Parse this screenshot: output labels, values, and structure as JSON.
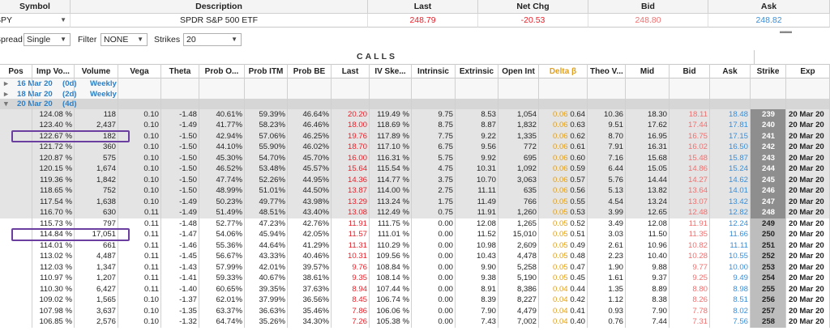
{
  "quote": {
    "headers": [
      "Symbol",
      "Description",
      "Last",
      "Net Chg",
      "Bid",
      "Ask"
    ],
    "symbol": "SPY",
    "description": "SPDR S&P 500 ETF",
    "last": "248.79",
    "net_chg": "-20.53",
    "bid": "248.80",
    "ask": "248.82"
  },
  "filters": {
    "spread_label": "Spread",
    "spread_value": "Single",
    "filter_label": "Filter",
    "filter_value": "NONE",
    "strikes_label": "Strikes",
    "strikes_value": "20"
  },
  "banner": "CALLS",
  "columns": [
    "Pos",
    "Imp Vo...",
    "Volume",
    "Vega",
    "Theta",
    "Prob O...",
    "Prob ITM",
    "Prob BE",
    "Last",
    "IV Ske...",
    "Intrinsic",
    "Extrinsic",
    "Open Int",
    "Delta β",
    "Theo V...",
    "Mid",
    "Bid",
    "Ask",
    "Strike",
    "Exp"
  ],
  "expirations": [
    {
      "date": "16 Mar 20",
      "days": "(0d)",
      "type": "Weekly",
      "expanded": false
    },
    {
      "date": "18 Mar 20",
      "days": "(2d)",
      "type": "Weekly",
      "expanded": false
    },
    {
      "date": "20 Mar 20",
      "days": "(4d)",
      "type": "",
      "expanded": true
    }
  ],
  "rows": [
    {
      "iv": "124.08 %",
      "vol": "118",
      "vega": "0.10",
      "theta": "-1.48",
      "po": "40.61%",
      "pitm": "59.39%",
      "pbe": "46.64%",
      "last": "20.20",
      "ivs": "119.49 %",
      "intr": "9.75",
      "extr": "8.53",
      "oi": "1,054",
      "da": "0.06",
      "db": "0.64",
      "theo": "10.36",
      "mid": "18.30",
      "bid": "18.11",
      "ask": "18.48",
      "strike": "239",
      "exp": "20 Mar 20",
      "itm": true
    },
    {
      "iv": "123.40 %",
      "vol": "2,437",
      "vega": "0.10",
      "theta": "-1.49",
      "po": "41.77%",
      "pitm": "58.23%",
      "pbe": "46.46%",
      "last": "18.00",
      "ivs": "118.69 %",
      "intr": "8.75",
      "extr": "8.87",
      "oi": "1,832",
      "da": "0.06",
      "db": "0.63",
      "theo": "9.51",
      "mid": "17.62",
      "bid": "17.44",
      "ask": "17.81",
      "strike": "240",
      "exp": "20 Mar 20",
      "itm": true
    },
    {
      "iv": "122.67 %",
      "vol": "182",
      "vega": "0.10",
      "theta": "-1.50",
      "po": "42.94%",
      "pitm": "57.06%",
      "pbe": "46.25%",
      "last": "19.76",
      "ivs": "117.89 %",
      "intr": "7.75",
      "extr": "9.22",
      "oi": "1,335",
      "da": "0.06",
      "db": "0.62",
      "theo": "8.70",
      "mid": "16.95",
      "bid": "16.75",
      "ask": "17.15",
      "strike": "241",
      "exp": "20 Mar 20",
      "itm": true
    },
    {
      "iv": "121.72 %",
      "vol": "360",
      "vega": "0.10",
      "theta": "-1.50",
      "po": "44.10%",
      "pitm": "55.90%",
      "pbe": "46.02%",
      "last": "18.70",
      "ivs": "117.10 %",
      "intr": "6.75",
      "extr": "9.56",
      "oi": "772",
      "da": "0.06",
      "db": "0.61",
      "theo": "7.91",
      "mid": "16.31",
      "bid": "16.02",
      "ask": "16.50",
      "strike": "242",
      "exp": "20 Mar 20",
      "itm": true
    },
    {
      "iv": "120.87 %",
      "vol": "575",
      "vega": "0.10",
      "theta": "-1.50",
      "po": "45.30%",
      "pitm": "54.70%",
      "pbe": "45.70%",
      "last": "16.00",
      "ivs": "116.31 %",
      "intr": "5.75",
      "extr": "9.92",
      "oi": "695",
      "da": "0.06",
      "db": "0.60",
      "theo": "7.16",
      "mid": "15.68",
      "bid": "15.48",
      "ask": "15.87",
      "strike": "243",
      "exp": "20 Mar 20",
      "itm": true
    },
    {
      "iv": "120.15 %",
      "vol": "1,674",
      "vega": "0.10",
      "theta": "-1.50",
      "po": "46.52%",
      "pitm": "53.48%",
      "pbe": "45.57%",
      "last": "15.64",
      "ivs": "115.54 %",
      "intr": "4.75",
      "extr": "10.31",
      "oi": "1,092",
      "da": "0.06",
      "db": "0.59",
      "theo": "6.44",
      "mid": "15.05",
      "bid": "14.86",
      "ask": "15.24",
      "strike": "244",
      "exp": "20 Mar 20",
      "itm": true
    },
    {
      "iv": "119.36 %",
      "vol": "1,842",
      "vega": "0.10",
      "theta": "-1.50",
      "po": "47.74%",
      "pitm": "52.26%",
      "pbe": "44.95%",
      "last": "14.36",
      "ivs": "114.77 %",
      "intr": "3.75",
      "extr": "10.70",
      "oi": "3,063",
      "da": "0.06",
      "db": "0.57",
      "theo": "5.76",
      "mid": "14.44",
      "bid": "14.27",
      "ask": "14.62",
      "strike": "245",
      "exp": "20 Mar 20",
      "itm": true
    },
    {
      "iv": "118.65 %",
      "vol": "752",
      "vega": "0.10",
      "theta": "-1.50",
      "po": "48.99%",
      "pitm": "51.01%",
      "pbe": "44.50%",
      "last": "13.87",
      "ivs": "114.00 %",
      "intr": "2.75",
      "extr": "11.11",
      "oi": "635",
      "da": "0.06",
      "db": "0.56",
      "theo": "5.13",
      "mid": "13.82",
      "bid": "13.64",
      "ask": "14.01",
      "strike": "246",
      "exp": "20 Mar 20",
      "itm": true
    },
    {
      "iv": "117.54 %",
      "vol": "1,638",
      "vocab": "",
      "vega": "0.10",
      "theta": "-1.49",
      "po": "50.23%",
      "pitm": "49.77%",
      "pbe": "43.98%",
      "last": "13.29",
      "ivs": "113.24 %",
      "intr": "1.75",
      "extr": "11.49",
      "oi": "766",
      "da": "0.05",
      "db": "0.55",
      "theo": "4.54",
      "mid": "13.24",
      "bid": "13.07",
      "ask": "13.42",
      "strike": "247",
      "exp": "20 Mar 20",
      "itm": true
    },
    {
      "iv": "116.70 %",
      "vol": "630",
      "vega": "0.11",
      "theta": "-1.49",
      "po": "51.49%",
      "pitm": "48.51%",
      "pbe": "43.40%",
      "last": "13.08",
      "ivs": "112.49 %",
      "intr": "0.75",
      "extr": "11.91",
      "oi": "1,260",
      "da": "0.05",
      "db": "0.53",
      "theo": "3.99",
      "mid": "12.65",
      "bid": "12.48",
      "ask": "12.82",
      "strike": "248",
      "exp": "20 Mar 20",
      "itm": true
    },
    {
      "iv": "115.73 %",
      "vol": "797",
      "vega": "0.11",
      "theta": "-1.48",
      "po": "52.77%",
      "pitm": "47.23%",
      "pbe": "42.76%",
      "last": "11.91",
      "ivs": "111.75 %",
      "intr": "0.00",
      "extr": "12.08",
      "oi": "1,265",
      "da": "0.05",
      "db": "0.52",
      "theo": "3.49",
      "mid": "12.08",
      "bid": "11.91",
      "ask": "12.24",
      "strike": "249",
      "exp": "20 Mar 20",
      "itm": false
    },
    {
      "iv": "114.84 %",
      "vol": "17,051",
      "vega": "0.11",
      "theta": "-1.47",
      "po": "54.06%",
      "pitm": "45.94%",
      "pbe": "42.05%",
      "last": "11.57",
      "ivs": "111.01 %",
      "intr": "0.00",
      "extr": "11.52",
      "oi": "15,010",
      "da": "0.05",
      "db": "0.51",
      "theo": "3.03",
      "mid": "11.50",
      "bid": "11.35",
      "ask": "11.66",
      "strike": "250",
      "exp": "20 Mar 20",
      "itm": false
    },
    {
      "iv": "114.01 %",
      "vol": "661",
      "vega": "0.11",
      "theta": "-1.46",
      "po": "55.36%",
      "pitm": "44.64%",
      "pbe": "41.29%",
      "last": "11.31",
      "ivs": "110.29 %",
      "intr": "0.00",
      "extr": "10.98",
      "oi": "2,609",
      "da": "0.05",
      "db": "0.49",
      "theo": "2.61",
      "mid": "10.96",
      "bid": "10.82",
      "ask": "11.11",
      "strike": "251",
      "exp": "20 Mar 20",
      "itm": false
    },
    {
      "iv": "113.02 %",
      "vol": "4,487",
      "vega": "0.11",
      "theta": "-1.45",
      "po": "56.67%",
      "pitm": "43.33%",
      "pbe": "40.46%",
      "last": "10.31",
      "ivs": "109.56 %",
      "intr": "0.00",
      "extr": "10.43",
      "oi": "4,478",
      "da": "0.05",
      "db": "0.48",
      "theo": "2.23",
      "mid": "10.40",
      "bid": "10.28",
      "ask": "10.55",
      "strike": "252",
      "exp": "20 Mar 20",
      "itm": false
    },
    {
      "iv": "112.03 %",
      "vol": "1,347",
      "vega": "0.11",
      "theta": "-1.43",
      "po": "57.99%",
      "pitm": "42.01%",
      "pbe": "39.57%",
      "last": "9.76",
      "ivs": "108.84 %",
      "intr": "0.00",
      "extr": "9.90",
      "oi": "5,258",
      "da": "0.05",
      "db": "0.47",
      "theo": "1.90",
      "mid": "9.88",
      "bid": "9.77",
      "ask": "10.00",
      "strike": "253",
      "exp": "20 Mar 20",
      "itm": false
    },
    {
      "iv": "110.97 %",
      "vol": "1,207",
      "vega": "0.11",
      "theta": "-1.41",
      "po": "59.33%",
      "pitm": "40.67%",
      "pbe": "38.61%",
      "last": "9.35",
      "ivs": "108.14 %",
      "intr": "0.00",
      "extr": "9.38",
      "oi": "5,190",
      "da": "0.05",
      "db": "0.45",
      "theo": "1.61",
      "mid": "9.37",
      "bid": "9.25",
      "ask": "9.49",
      "strike": "254",
      "exp": "20 Mar 20",
      "itm": false
    },
    {
      "iv": "110.30 %",
      "vol": "6,427",
      "vega": "0.11",
      "theta": "-1.40",
      "po": "60.65%",
      "pitm": "39.35%",
      "pbe": "37.63%",
      "last": "8.94",
      "ivs": "107.44 %",
      "intr": "0.00",
      "extr": "8.91",
      "oi": "8,386",
      "da": "0.04",
      "db": "0.44",
      "theo": "1.35",
      "mid": "8.89",
      "bid": "8.80",
      "ask": "8.98",
      "strike": "255",
      "exp": "20 Mar 20",
      "itm": false
    },
    {
      "iv": "109.02 %",
      "vol": "1,565",
      "vega": "0.10",
      "theta": "-1.37",
      "po": "62.01%",
      "pitm": "37.99%",
      "pbe": "36.56%",
      "last": "8.45",
      "ivs": "106.74 %",
      "intr": "0.00",
      "extr": "8.39",
      "oi": "8,227",
      "da": "0.04",
      "db": "0.42",
      "theo": "1.12",
      "mid": "8.38",
      "bid": "8.26",
      "ask": "8.51",
      "strike": "256",
      "exp": "20 Mar 20",
      "itm": false
    },
    {
      "iv": "107.98 %",
      "vol": "3,637",
      "vega": "0.10",
      "theta": "-1.35",
      "po": "63.37%",
      "pitm": "36.63%",
      "pbe": "35.46%",
      "last": "7.86",
      "ivs": "106.06 %",
      "intr": "0.00",
      "extr": "7.90",
      "oi": "4,479",
      "da": "0.04",
      "db": "0.41",
      "theo": "0.93",
      "mid": "7.90",
      "bid": "7.78",
      "ask": "8.02",
      "strike": "257",
      "exp": "20 Mar 20",
      "itm": false
    },
    {
      "iv": "106.85 %",
      "vol": "2,576",
      "vega": "0.10",
      "theta": "-1.32",
      "po": "64.74%",
      "pitm": "35.26%",
      "pbe": "34.30%",
      "last": "7.26",
      "ivs": "105.38 %",
      "intr": "0.00",
      "extr": "7.43",
      "oi": "7,002",
      "da": "0.04",
      "db": "0.40",
      "theo": "0.76",
      "mid": "7.44",
      "bid": "7.31",
      "ask": "7.56",
      "strike": "258",
      "exp": "20 Mar 20",
      "itm": false
    }
  ],
  "colors": {
    "last_red": "#e8202a",
    "bid_pink": "#f07070",
    "ask_blue": "#3a8ed8",
    "delta_amber": "#e0a020",
    "highlight": "#6a3fa0"
  },
  "highlighted_rows": [
    2,
    11
  ]
}
